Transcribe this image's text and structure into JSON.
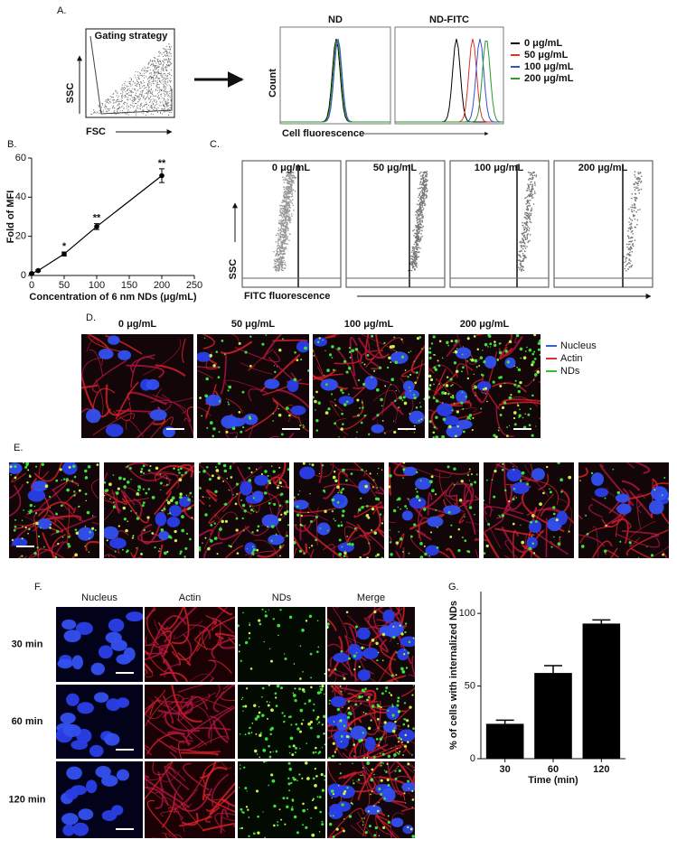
{
  "panels": {
    "A": {
      "label": "A.",
      "gating_title": "Gating strategy",
      "ssc": "SSC",
      "fsc": "FSC",
      "hist_titles": [
        "ND",
        "ND-FITC"
      ],
      "y_label": "Count",
      "x_label": "Cell fluorescence",
      "legend": [
        {
          "name": "0 μg/mL",
          "color": "#000000"
        },
        {
          "name": "50 μg/mL",
          "color": "#e0302a"
        },
        {
          "name": "100 μg/mL",
          "color": "#3050d8"
        },
        {
          "name": "200 μg/mL",
          "color": "#2a9a2a"
        }
      ]
    },
    "B": {
      "label": "B."
    },
    "C": {
      "label": "C.",
      "titles": [
        "0 μg/mL",
        "50 μg/mL",
        "100 μg/mL",
        "200 μg/mL"
      ],
      "ssc": "SSC",
      "x_label": "FITC fluorescence"
    },
    "D": {
      "label": "D.",
      "titles": [
        "0 μg/mL",
        "50 μg/mL",
        "100 μg/mL",
        "200 μg/mL"
      ],
      "legend": [
        {
          "name": "Nucleus",
          "color": "#3a5fd0"
        },
        {
          "name": "Actin",
          "color": "#e0302a"
        },
        {
          "name": "NDs",
          "color": "#2fc02f"
        }
      ]
    },
    "E": {
      "label": "E."
    },
    "F": {
      "label": "F.",
      "columns": [
        "Nucleus",
        "Actin",
        "NDs",
        "Merge"
      ],
      "rows": [
        "30 min",
        "60 min",
        "120 min"
      ]
    },
    "G": {
      "label": "G."
    }
  },
  "chart_data": [
    {
      "type": "line",
      "x_label": "Concentration of 6 nm NDs (μg/mL)",
      "y_label": "Fold of MFI",
      "x": [
        0,
        10,
        50,
        100,
        200
      ],
      "values": [
        1,
        2.5,
        11,
        25,
        51
      ],
      "errors": [
        0.3,
        0.4,
        1,
        1.5,
        3.5
      ],
      "point_labels": [
        null,
        null,
        "*",
        "**",
        "**"
      ],
      "color": "#000000",
      "xlim": [
        0,
        250
      ],
      "xticks": [
        0,
        50,
        100,
        150,
        200,
        250
      ],
      "ylim": [
        0,
        60
      ],
      "yticks": [
        0,
        20,
        40,
        60
      ]
    },
    {
      "type": "bar",
      "x_label": "Time (min)",
      "y_label": "% of cells with internalized NDs",
      "categories": [
        "30",
        "60",
        "120"
      ],
      "values": [
        24,
        59,
        93
      ],
      "errors": [
        2.5,
        5,
        2.5
      ],
      "color": "#000000",
      "ylim": [
        0,
        115
      ],
      "yticks": [
        0,
        50,
        100
      ]
    }
  ]
}
